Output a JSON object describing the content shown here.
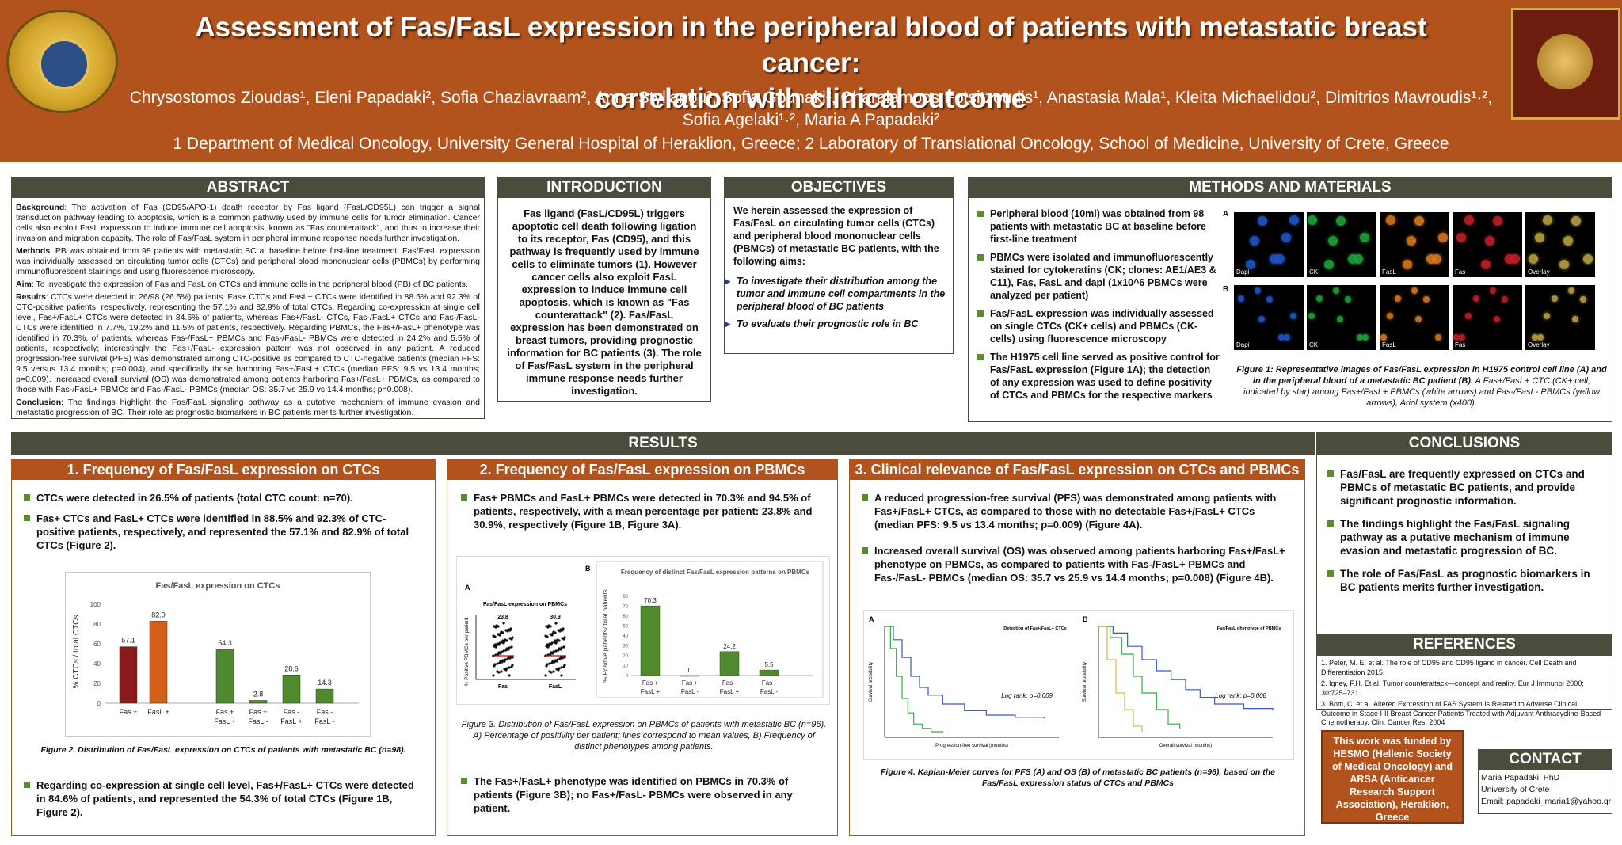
{
  "header": {
    "title_line1": "Assessment of Fas/FasL expression in the peripheral blood of patients with metastatic breast cancer:",
    "title_line2": "correlation with clinical outcome",
    "authors_line1": "Chrysostomos Zioudas¹, Eleni Papadaki², Sofia Chaziavraam², Anna Stylianou², Sofia Gounaki², Charalampos Fotsitzoudis¹, Anastasia Mala¹, Kleita Michaelidou², Dimitrios Mavroudis¹·²,",
    "authors_line2": "Sofia Agelaki¹·², Maria A Papadaki²",
    "affiliations": "1 Department of Medical Oncology, University General Hospital of Heraklion, Greece; 2 Laboratory of Translational Oncology, School of Medicine, University of Crete, Greece",
    "logo_left_text": "ΣΥΝ ΑΘΗΝΑ · ΤΜΗΜΑ ΙΑΤΡΙΚΗΣ",
    "logo_right_text": "UNIVERSITY OF CRETE"
  },
  "abstract": {
    "heading": "ABSTRACT",
    "background_label": "Background",
    "background": ": The activation of Fas (CD95/APO-1) death receptor by Fas ligand (FasL/CD95L) can trigger a signal transduction pathway leading to apoptosis, which is a common pathway used by immune cells for tumor elimination. Cancer cells also exploit FasL expression to induce immune cell apoptosis, known as \"Fas counterattack\", and thus to increase their invasion and migration capacity. The role of Fas/FasL system in peripheral immune response needs further investigation.",
    "methods_label": "Methods",
    "methods": ": PB was obtained from 98 patients with metastatic BC at baseline before first-line treatment. Fas/FasL expression was individually assessed on circulating tumor cells (CTCs) and peripheral blood mononuclear cells (PBMCs) by performing immunofluorescent stainings and using fluorescence microscopy.",
    "aim_label": "Aim",
    "aim": ": To investigate the expression of Fas and FasL on CTCs and immune cells in the peripheral blood (PB) of BC patients.",
    "results_label": "Results",
    "results": ": CTCs were detected in 26/98 (26.5%) patients. Fas+ CTCs and FasL+ CTCs were identified in 88.5% and 92.3% of CTC-positive patients, respectively, representing the 57.1% and 82.9% of total CTCs. Regarding co-expression at single cell level, Fas+/FasL+ CTCs were detected in 84.6% of patients, whereas Fas+/FasL- CTCs, Fas-/FasL+ CTCs and Fas-/FasL- CTCs were identified in 7.7%, 19.2% and 11.5% of patients, respectively. Regarding PBMCs, the Fas+/FasL+ phenotype was identified in 70.3%, of patients, whereas Fas-/FasL+ PBMCs and Fas-/FasL- PBMCs were detected in 24.2% and 5.5% of patients, respectively; interestingly the Fas+/FasL- expression pattern was not observed in any patient. A reduced progression-free survival (PFS) was demonstrated among CTC-positive as compared to CTC-negative patients (median PFS: 9.5 versus 13.4 months; p=0.004), and specifically those harboring Fas+/FasL+ CTCs (median PFS: 9.5 vs 13.4 months; p=0.009). Increased overall survival (OS) was demonstrated among patients harboring Fas+/FasL+ PBMCs, as compared to those with Fas-/FasL+ PBMCs and Fas-/FasL- PBMCs (median OS: 35.7 vs 25.9 vs 14.4 months; p=0.008).",
    "conclusion_label": "Conclusion",
    "conclusion": ": The findings highlight the Fas/FasL signaling pathway as a putative mechanism of immune evasion and metastatic progression of BC. Their role as prognostic biomarkers in BC patients merits further investigation."
  },
  "introduction": {
    "heading": "INTRODUCTION",
    "text": "Fas ligand (FasL/CD95L) triggers apoptotic cell death following ligation to its receptor, Fas (CD95), and this pathway is frequently used by immune cells to eliminate tumors (1). However cancer cells also exploit FasL expression to induce immune cell apoptosis, which is known as \"Fas counterattack\" (2). Fas/FasL expression has been demonstrated on breast tumors, providing prognostic information for BC patients (3). The role of Fas/FasL system in the peripheral immune response needs further investigation."
  },
  "objectives": {
    "heading": "OBJECTIVES",
    "intro": "We herein assessed the expression of Fas/FasL on circulating tumor cells (CTCs) and peripheral blood mononuclear cells (PBMCs) of metastatic BC patients, with the following aims:",
    "aims": [
      "To investigate their distribution among the tumor and immune cell compartments in the peripheral blood of BC patients",
      "To evaluate their prognostic role in BC"
    ]
  },
  "methods": {
    "heading": "METHODS AND MATERIALS",
    "items": [
      "Peripheral blood (10ml) was obtained from 98 patients with metastatic BC at baseline before first-line treatment",
      "PBMCs were isolated and immunofluorescently stained for cytokeratins (CK; clones: AE1/AE3 & C11), Fas, FasL and dapi (1x10^6 PBMCs were analyzed per patient)",
      "Fas/FasL expression was individually assessed on single CTCs (CK+ cells) and PBMCs (CK-cells) using fluorescence microscopy",
      "The H1975 cell line served as positive control for Fas/FasL expression (Figure 1A); the detection of any expression was used to define positivity of CTCs and PBMCs for the respective markers"
    ],
    "row_labels": [
      "A",
      "B"
    ],
    "panel_labels": [
      "Dapi",
      "CK",
      "FasL",
      "Fas",
      "Overlay"
    ],
    "caption_bold": "Figure 1: Representative images of Fas/FasL expression in H1975 control cell line (A) and in the peripheral blood of a metastatic BC patient (B).",
    "caption_rest": " A Fas+/FasL+ CTC (CK+ cell; indicated by star) among Fas+/FasL+ PBMCs (white arrows) and Fas-/FasL- PBMCs (yellow arrows), Ariol system (x400).",
    "colors": [
      "#1f56c9",
      "#1fa23a",
      "#d8781f",
      "#c0202a",
      "#b8a040"
    ]
  },
  "results": {
    "heading": "RESULTS",
    "sec1": {
      "heading": "1. Frequency of Fas/FasL expression on CTCs",
      "bullets": [
        "CTCs were detected in 26.5% of patients (total CTC count: n=70).",
        "Fas+ CTCs and FasL+ CTCs were identified in 88.5% and 92.3% of CTC-positive patients, respectively, and represented the 57.1% and 82.9% of total CTCs (Figure 2)."
      ],
      "caption": "Figure 2. Distribution of Fas/FasL expression on CTCs of patients with metastatic BC (n=98).",
      "bullet_bottom": "Regarding co-expression at single cell level, Fas+/FasL+ CTCs were detected in 84.6% of patients, and represented the 54.3% of total CTCs (Figure 1B, Figure 2)."
    },
    "sec2": {
      "heading": "2. Frequency of Fas/FasL expression on PBMCs",
      "bullets": [
        "Fas+ PBMCs and FasL+ PBMCs were detected in 70.3% and 94.5% of patients, respectively, with a mean percentage per patient: 23.8% and 30.9%, respectively (Figure 1B, Figure 3A)."
      ],
      "caption": "Figure 3. Distribution of Fas/FasL expression on PBMCs of patients with metastatic BC (n=96). A) Percentage of positivity per patient; lines correspond to mean values, B) Frequency of distinct phenotypes among patients.",
      "bullet_bottom": "The Fas+/FasL+ phenotype was identified on PBMCs in 70.3% of patients (Figure 3B); no Fas+/FasL- PBMCs were observed in any patient."
    },
    "sec3": {
      "heading": "3. Clinical relevance of Fas/FasL expression on CTCs and PBMCs",
      "bullets": [
        "A reduced progression-free survival (PFS) was demonstrated among patients with Fas+/FasL+ CTCs, as compared to those with no detectable Fas+/FasL+ CTCs    (median PFS: 9.5 vs 13.4 months; p=0.009) (Figure 4A).",
        "Increased overall survival (OS) was observed among patients harboring Fas+/FasL+ phenotype on PBMCs, as compared to patients with Fas-/FasL+ PBMCs and Fas-/FasL- PBMCs (median OS: 35.7 vs 25.9 vs 14.4 months; p=0.008) (Figure 4B)."
      ],
      "caption": "Figure 4. Kaplan-Meier curves for PFS (A) and OS (B) of metastatic BC patients (n=96), based on the Fas/FasL expression status of CTCs and PBMCs"
    }
  },
  "chart_data": [
    {
      "type": "bar",
      "title": "Fas/FasL expression on CTCs",
      "ylabel": "% CTCs / total CTCs",
      "categories": [
        "Fas +",
        "FasL +",
        "Fas + FasL +",
        "Fas + FasL -",
        "Fas - FasL +",
        "Fas - FasL -"
      ],
      "values": [
        57.1,
        82.9,
        54.3,
        2.8,
        28.6,
        14.3
      ],
      "colors": [
        "#8b1a1a",
        "#d2601a",
        "#4f8a2e",
        "#4f8a2e",
        "#4f8a2e",
        "#4f8a2e"
      ],
      "ylim": [
        0,
        100
      ],
      "yticks": [
        0,
        20,
        40,
        60,
        80,
        100
      ]
    },
    {
      "type": "scatter",
      "title": "Fas/FasL expression on PBMCs",
      "ylabel": "% Positive PBMCs per patient",
      "categories": [
        "Fas",
        "FasL"
      ],
      "means": [
        23.8,
        30.9
      ],
      "panel": "A"
    },
    {
      "type": "bar",
      "title": "Frequency of distinct Fas/FasL expression patterns on PBMCs",
      "ylabel": "% Positive patients/ total patients",
      "categories": [
        "Fas + FasL +",
        "Fas + FasL -",
        "Fas - FasL +",
        "Fas - FasL -"
      ],
      "values": [
        70.3,
        0,
        24.2,
        5.5
      ],
      "ylim": [
        0,
        80
      ],
      "yticks": [
        0,
        10,
        20,
        30,
        40,
        50,
        60,
        70,
        80
      ],
      "panel": "B"
    },
    {
      "type": "line",
      "panel": "A",
      "xlabel": "Progression-free survival (months)",
      "ylabel": "Survival probability",
      "annotation": "Log rank: p=0.009",
      "legend_title": "Detection of Fas+/FasL+ CTCs"
    },
    {
      "type": "line",
      "panel": "B",
      "xlabel": "Overall survival (months)",
      "ylabel": "Survival probability",
      "annotation": "Log rank: p=0.008",
      "legend_title": "Fas/FasL phenotype of PBMCs"
    }
  ],
  "conclusions": {
    "heading": "CONCLUSIONS",
    "items": [
      "Fas/FasL are frequently expressed on CTCs and PBMCs of metastatic BC patients, and provide significant prognostic information.",
      "The findings highlight the Fas/FasL signaling pathway as a putative mechanism of immune evasion and metastatic progression of BC.",
      "The role of Fas/FasL as prognostic biomarkers in BC patients merits further investigation."
    ]
  },
  "references": {
    "heading": "REFERENCES",
    "items": [
      "1. Peter, M. E. et al. The role of CD95 and CD95 ligand in cancer. Cell Death and Differentiation 2015.",
      "2. Igney, F.H. Et al. Tumor counterattack—concept and reality. Eur J Immunol 2000; 30:725–731.",
      "3. Botti, C. et al. Altered Expression of FAS System Is Related to Adverse Clinical Outcome in Stage I-II Breast Cancer Patients Treated with Adjuvant Anthracycline-Based Chemotherapy. Clin. Cancer Res. 2004"
    ]
  },
  "funding": "This work was funded by HESMO (Hellenic Society of Medical Oncology) and ARSA (Anticancer Research Support Association), Heraklion, Greece",
  "contact": {
    "heading": "CONTACT",
    "name": "Maria Papadaki, PhD",
    "org": "University of Crete",
    "email": "Email: papadaki_maria1@yahoo.gr"
  }
}
